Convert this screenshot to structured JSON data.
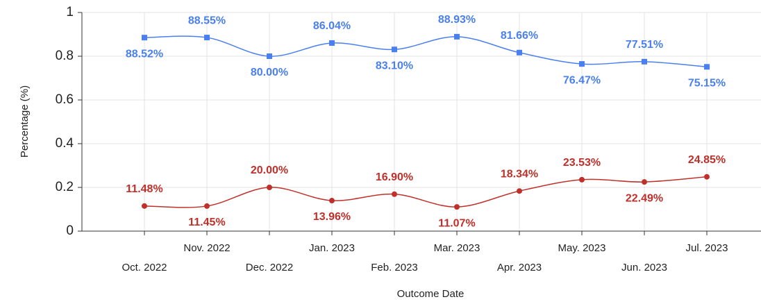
{
  "chart_data": {
    "type": "line",
    "x_label": "Outcome Date",
    "y_label": "Percentage (%)",
    "categories": [
      "Oct. 2022",
      "Nov. 2022",
      "Dec. 2022",
      "Jan. 2023",
      "Feb. 2023",
      "Mar. 2023",
      "Apr. 2023",
      "May. 2023",
      "Jun. 2023",
      "Jul. 2023"
    ],
    "series": [
      {
        "color": "#4a7ff0",
        "marker": "square",
        "values": [
          0.8852,
          0.8855,
          0.8,
          0.8604,
          0.831,
          0.8893,
          0.8166,
          0.7647,
          0.7751,
          0.7515
        ],
        "value_labels": [
          "88.52%",
          "88.55%",
          "80.00%",
          "86.04%",
          "83.10%",
          "88.93%",
          "81.66%",
          "76.47%",
          "77.51%",
          "75.15%"
        ]
      },
      {
        "color": "#c0302a",
        "marker": "circle",
        "values": [
          0.1148,
          0.1145,
          0.2,
          0.1396,
          0.169,
          0.1107,
          0.1834,
          0.2353,
          0.2249,
          0.2485
        ],
        "value_labels": [
          "11.48%",
          "11.45%",
          "20.00%",
          "13.96%",
          "16.90%",
          "11.07%",
          "18.34%",
          "23.53%",
          "22.49%",
          "24.85%"
        ]
      }
    ],
    "ylim": [
      0,
      1
    ],
    "yticks": [
      0,
      0.2,
      0.4,
      0.6,
      0.8,
      1
    ],
    "grid": true
  }
}
